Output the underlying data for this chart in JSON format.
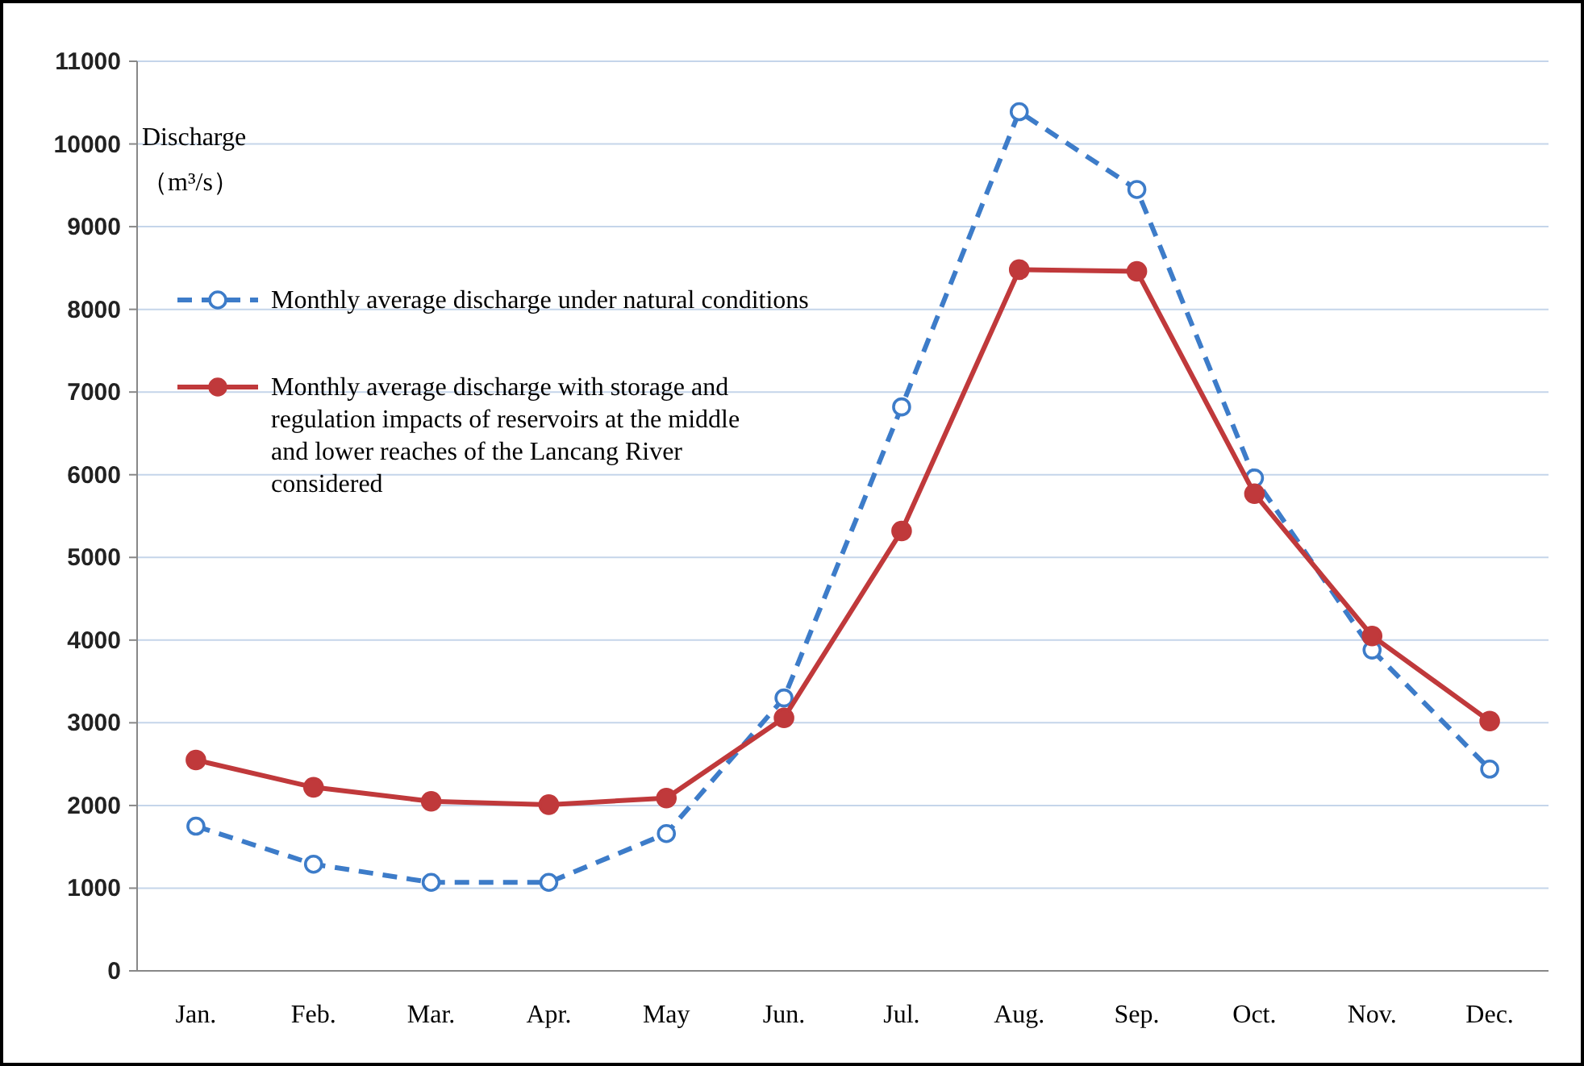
{
  "chart_data": {
    "type": "line",
    "ylabel": "Discharge\n（m³/s）",
    "categories": [
      "Jan.",
      "Feb.",
      "Mar.",
      "Apr.",
      "May",
      "Jun.",
      "Jul.",
      "Aug.",
      "Sep.",
      "Oct.",
      "Nov.",
      "Dec."
    ],
    "series": [
      {
        "name": "Monthly average discharge under natural conditions",
        "color": "#3d7cc9",
        "line_style": "dashed",
        "marker": "circle",
        "values": [
          1750,
          1290,
          1070,
          1070,
          1660,
          3300,
          6820,
          10390,
          9450,
          5960,
          3880,
          2440
        ]
      },
      {
        "name": "Monthly average discharge with storage and\nregulation impacts of reservoirs at the middle\nand lower reaches of the Lancang River\nconsidered",
        "color": "#c0393b",
        "line_style": "solid",
        "marker": "circle",
        "values": [
          2550,
          2220,
          2050,
          2010,
          2090,
          3060,
          5320,
          8480,
          8460,
          5770,
          4050,
          3020
        ]
      }
    ],
    "ylim": [
      0,
      11000
    ],
    "yticks": [
      0,
      1000,
      2000,
      3000,
      4000,
      5000,
      6000,
      7000,
      8000,
      9000,
      10000,
      11000
    ],
    "grid": "y",
    "legend": "top left"
  }
}
